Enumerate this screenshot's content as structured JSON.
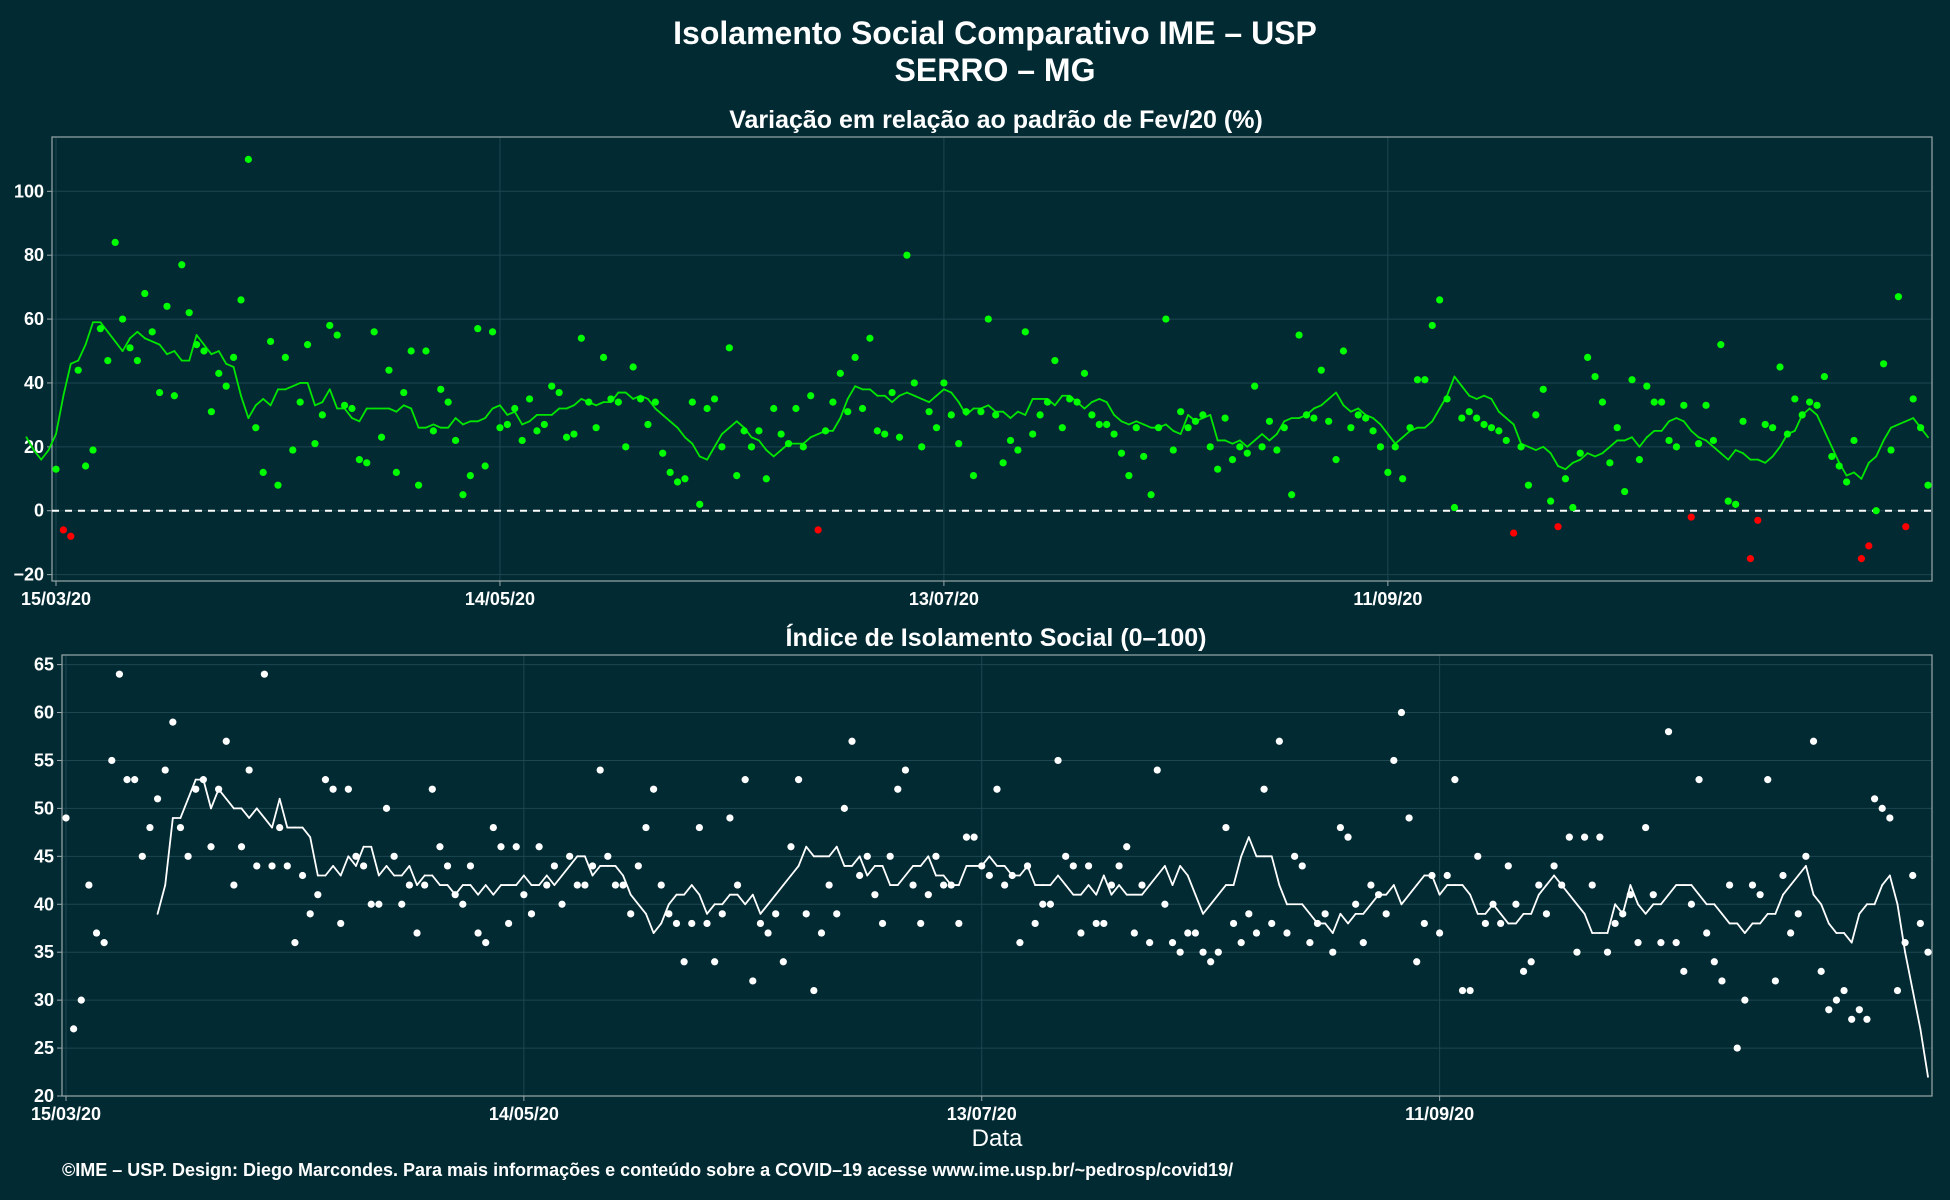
{
  "title_line1": "Isolamento Social Comparativo IME – USP",
  "title_line2": "SERRO – MG",
  "xlabel": "Data",
  "footer": "©IME – USP. Design: Diego Marcondes. Para mais informações e conteúdo sobre a COVID–19 acesse www.ime.usp.br/~pedrosp/covid19/",
  "colors": {
    "background": "#022a33",
    "panel_border": "#9aa8ab",
    "grid": "#1c4650",
    "positive_points": "#00ff00",
    "negative_points": "#ff0000",
    "trend_top": "#00e600",
    "trend_negative": "#ff0000",
    "points_bottom": "#ffffff",
    "trend_bottom": "#ffffff"
  },
  "chart_data": [
    {
      "type": "scatter",
      "title": "Variação em relação ao padrão de Fev/20 (%)",
      "xlabel": "",
      "ylabel": "",
      "x_start": "15/03/20",
      "x_tick_labels": [
        "15/03/20",
        "14/05/20",
        "13/07/20",
        "11/09/20"
      ],
      "x_tick_day_offsets": [
        0,
        60,
        120,
        180
      ],
      "ylim": [
        -22,
        117
      ],
      "yticks": [
        -20,
        0,
        20,
        40,
        60,
        80,
        100
      ],
      "reference_line": 0,
      "grid": true,
      "series": [
        {
          "kind": "points",
          "values": [
            13,
            -6,
            -8,
            44,
            14,
            19,
            57,
            47,
            84,
            60,
            51,
            47,
            68,
            56,
            37,
            64,
            36,
            77,
            62,
            52,
            50,
            31,
            43,
            39,
            48,
            66,
            110,
            26,
            12,
            53,
            8,
            48,
            19,
            34,
            52,
            21,
            30,
            58,
            55,
            33,
            32,
            16,
            15,
            56,
            23,
            44,
            12,
            37,
            50,
            8,
            50,
            25,
            38,
            34,
            22,
            5,
            11,
            57,
            14,
            56,
            26,
            27,
            32,
            22,
            35,
            25,
            27,
            39,
            37,
            23,
            24,
            54,
            34,
            26,
            48,
            35,
            34,
            20,
            45,
            35,
            27,
            34,
            18,
            12,
            9,
            10,
            34,
            2,
            32,
            35,
            20,
            51,
            11,
            25,
            20,
            25,
            10,
            32,
            24,
            21,
            32,
            20,
            36,
            -6,
            25,
            34,
            43,
            31,
            48,
            32,
            54,
            25,
            24,
            37,
            23,
            80,
            40,
            20,
            31,
            26,
            40,
            30,
            21,
            31,
            11,
            31,
            60,
            30,
            15,
            22,
            19,
            56,
            24,
            30,
            34,
            47,
            26,
            35,
            34,
            43,
            30,
            27,
            27,
            24,
            18,
            11,
            26,
            17,
            5,
            26,
            60,
            19,
            31,
            26,
            28,
            30,
            20,
            13,
            29,
            16,
            20,
            18,
            39,
            20,
            28,
            19,
            26,
            5,
            55,
            30,
            29,
            44,
            28,
            16,
            50,
            26,
            30,
            29,
            25,
            20,
            12,
            20,
            10,
            26,
            41,
            41,
            58,
            66,
            35,
            1,
            29,
            31,
            29,
            27,
            26,
            25,
            22,
            -7,
            20,
            8,
            30,
            38,
            3,
            -5,
            10,
            1,
            18,
            48,
            42,
            34,
            15,
            26,
            6,
            41,
            16,
            39,
            34,
            34,
            22,
            20,
            33,
            -2,
            21,
            33,
            22,
            52,
            3,
            2,
            28,
            -15,
            -3,
            27,
            26,
            45,
            24,
            35,
            30,
            34,
            33,
            42,
            17,
            14,
            9,
            22,
            -15,
            -11,
            0,
            46,
            19,
            67,
            -5,
            35,
            26,
            8
          ]
        },
        {
          "kind": "moving_average_line",
          "values": [
            23,
            19,
            16,
            19,
            24,
            36,
            46,
            47,
            52,
            59,
            59,
            56,
            53,
            50,
            54,
            56,
            54,
            53,
            52,
            49,
            50,
            47,
            47,
            55,
            52,
            49,
            50,
            46,
            45,
            36,
            29,
            33,
            35,
            33,
            38,
            38,
            39,
            40,
            40,
            33,
            34,
            38,
            32,
            32,
            29,
            28,
            32,
            32,
            32,
            32,
            31,
            33,
            32,
            26,
            26,
            27,
            26,
            26,
            29,
            27,
            28,
            28,
            29,
            32,
            33,
            30,
            31,
            27,
            28,
            30,
            30,
            30,
            32,
            32,
            33,
            35,
            34,
            33,
            34,
            34,
            37,
            37,
            35,
            36,
            35,
            32,
            30,
            28,
            26,
            23,
            21,
            17,
            16,
            20,
            24,
            26,
            28,
            26,
            23,
            22,
            19,
            17,
            19,
            21,
            21,
            21,
            23,
            24,
            25,
            25,
            29,
            35,
            39,
            38,
            38,
            36,
            36,
            34,
            36,
            37,
            36,
            35,
            34,
            36,
            38,
            37,
            34,
            30,
            32,
            32,
            33,
            31,
            31,
            29,
            31,
            30,
            35,
            35,
            35,
            33,
            36,
            36,
            34,
            32,
            34,
            35,
            34,
            30,
            28,
            27,
            28,
            27,
            26,
            26,
            27,
            25,
            24,
            30,
            28,
            29,
            30,
            22,
            22,
            21,
            22,
            20,
            22,
            24,
            22,
            24,
            28,
            29,
            29,
            30,
            32,
            33,
            35,
            37,
            33,
            31,
            32,
            30,
            29,
            27,
            24,
            21,
            23,
            25,
            26,
            26,
            28,
            32,
            36,
            42,
            39,
            36,
            35,
            36,
            35,
            31,
            29,
            27,
            21,
            20,
            19,
            20,
            18,
            14,
            13,
            15,
            16,
            18,
            17,
            18,
            20,
            22,
            22,
            23,
            20,
            23,
            25,
            25,
            28,
            29,
            28,
            25,
            23,
            22,
            20,
            18,
            16,
            19,
            18,
            16,
            16,
            15,
            17,
            20,
            24,
            25,
            30,
            32,
            30,
            25,
            20,
            15,
            11,
            12,
            10,
            15,
            17,
            22,
            26,
            27,
            28,
            29,
            26,
            23
          ]
        }
      ]
    },
    {
      "type": "scatter",
      "title": "Índice de Isolamento Social (0–100)",
      "xlabel": "Data",
      "ylabel": "",
      "x_start": "15/03/20",
      "x_tick_labels": [
        "15/03/20",
        "14/05/20",
        "13/07/20",
        "11/09/20"
      ],
      "x_tick_day_offsets": [
        0,
        60,
        120,
        180
      ],
      "ylim": [
        20,
        66
      ],
      "yticks": [
        20,
        25,
        30,
        35,
        40,
        45,
        50,
        55,
        60,
        65
      ],
      "grid": true,
      "series": [
        {
          "kind": "points",
          "values": [
            49,
            27,
            30,
            42,
            37,
            36,
            55,
            64,
            53,
            53,
            45,
            48,
            51,
            54,
            59,
            48,
            45,
            52,
            53,
            46,
            52,
            57,
            42,
            46,
            54,
            44,
            64,
            44,
            48,
            44,
            36,
            43,
            39,
            41,
            53,
            52,
            38,
            52,
            45,
            44,
            40,
            40,
            50,
            45,
            40,
            42,
            37,
            42,
            52,
            46,
            44,
            41,
            40,
            44,
            37,
            36,
            48,
            46,
            38,
            46,
            41,
            39,
            46,
            42,
            44,
            40,
            45,
            42,
            42,
            44,
            54,
            45,
            42,
            42,
            39,
            44,
            48,
            52,
            42,
            39,
            38,
            34,
            38,
            48,
            38,
            34,
            39,
            49,
            42,
            53,
            32,
            38,
            37,
            39,
            34,
            46,
            53,
            39,
            31,
            37,
            42,
            39,
            50,
            57,
            43,
            45,
            41,
            38,
            45,
            52,
            54,
            42,
            38,
            41,
            45,
            42,
            42,
            38,
            47,
            47,
            44,
            43,
            52,
            42,
            43,
            36,
            44,
            38,
            40,
            40,
            55,
            45,
            44,
            37,
            44,
            38,
            38,
            42,
            44,
            46,
            37,
            42,
            36,
            54,
            40,
            36,
            35,
            37,
            37,
            35,
            34,
            35,
            48,
            38,
            36,
            39,
            37,
            52,
            38,
            57,
            37,
            45,
            44,
            36,
            38,
            39,
            35,
            48,
            47,
            40,
            36,
            42,
            41,
            39,
            55,
            60,
            49,
            34,
            38,
            43,
            37,
            43,
            53,
            31,
            31,
            45,
            38,
            40,
            38,
            44,
            40,
            33,
            34,
            42,
            39,
            44,
            42,
            47,
            35,
            47,
            42,
            47,
            35,
            38,
            39,
            41,
            36,
            48,
            41,
            36,
            58,
            36,
            33,
            40,
            53,
            37,
            34,
            32,
            42,
            25,
            30,
            42,
            41,
            53,
            32,
            43,
            37,
            39,
            45,
            57,
            33,
            29,
            30,
            31,
            28,
            29,
            28,
            51,
            50,
            49,
            31,
            36,
            43,
            38,
            35
          ]
        },
        {
          "kind": "moving_average_line",
          "values": [
            39,
            42,
            49,
            49,
            51,
            53,
            53,
            50,
            52,
            51,
            50,
            50,
            49,
            50,
            49,
            48,
            51,
            48,
            48,
            48,
            47,
            43,
            43,
            44,
            43,
            45,
            44,
            46,
            46,
            43,
            44,
            43,
            43,
            44,
            42,
            43,
            43,
            42,
            42,
            41,
            42,
            42,
            41,
            42,
            41,
            42,
            42,
            42,
            43,
            42,
            42,
            43,
            42,
            43,
            44,
            45,
            45,
            43,
            44,
            44,
            44,
            43,
            41,
            40,
            39,
            37,
            38,
            40,
            41,
            41,
            42,
            41,
            39,
            40,
            40,
            41,
            41,
            40,
            41,
            39,
            40,
            41,
            42,
            43,
            44,
            46,
            45,
            45,
            45,
            46,
            44,
            44,
            45,
            43,
            44,
            44,
            42,
            42,
            43,
            44,
            44,
            45,
            43,
            43,
            42,
            42,
            44,
            44,
            44,
            45,
            44,
            44,
            43,
            43,
            44,
            42,
            42,
            42,
            43,
            42,
            41,
            41,
            42,
            41,
            43,
            41,
            42,
            41,
            41,
            41,
            42,
            43,
            44,
            42,
            44,
            43,
            41,
            39,
            40,
            41,
            42,
            42,
            45,
            47,
            45,
            45,
            45,
            42,
            40,
            40,
            40,
            39,
            38,
            38,
            37,
            39,
            38,
            39,
            39,
            40,
            41,
            41,
            42,
            40,
            41,
            42,
            43,
            43,
            41,
            42,
            42,
            42,
            41,
            39,
            39,
            40,
            39,
            38,
            38,
            39,
            39,
            41,
            42,
            43,
            42,
            41,
            40,
            39,
            37,
            37,
            37,
            40,
            39,
            42,
            40,
            39,
            40,
            40,
            41,
            42,
            42,
            42,
            41,
            40,
            40,
            39,
            38,
            38,
            37,
            38,
            38,
            39,
            39,
            41,
            42,
            43,
            44,
            41,
            40,
            38,
            37,
            37,
            36,
            39,
            40,
            40,
            42,
            43,
            40,
            35,
            31,
            27,
            22
          ]
        }
      ]
    }
  ]
}
